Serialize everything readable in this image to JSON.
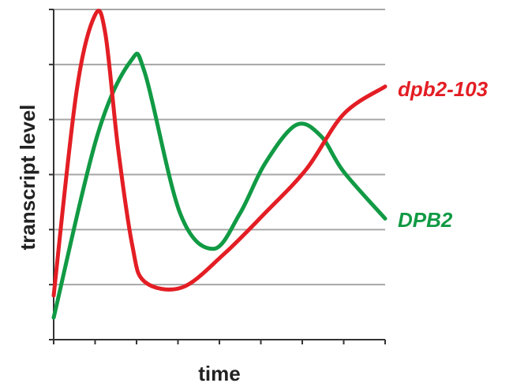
{
  "chart_data": {
    "type": "line",
    "xlabel": "time",
    "ylabel": "transcript level",
    "xlim": [
      0,
      8
    ],
    "ylim": [
      0,
      6
    ],
    "grid": true,
    "x_ticks": [
      0,
      1,
      2,
      3,
      4,
      5,
      6,
      7,
      8
    ],
    "y_ticks": [
      0,
      1,
      2,
      3,
      4,
      5,
      6
    ],
    "series": [
      {
        "name": "dpb2-103",
        "color": "#e31e24",
        "x": [
          0,
          0.55,
          1.0,
          1.25,
          1.55,
          1.9,
          2.2,
          3.1,
          4.1,
          5.1,
          6.1,
          7.0,
          8.0
        ],
        "y": [
          0.8,
          4.5,
          5.9,
          5.55,
          3.5,
          1.7,
          1.05,
          0.95,
          1.55,
          2.3,
          3.1,
          4.1,
          4.6
        ]
      },
      {
        "name": "DPB2",
        "color": "#119a44",
        "x": [
          0,
          1.05,
          1.85,
          2.2,
          3.05,
          3.85,
          4.5,
          5.1,
          5.85,
          6.45,
          7.0,
          8.0
        ],
        "y": [
          0.4,
          3.7,
          5.05,
          4.85,
          2.3,
          1.65,
          2.3,
          3.2,
          3.9,
          3.7,
          3.05,
          2.2
        ]
      }
    ]
  }
}
